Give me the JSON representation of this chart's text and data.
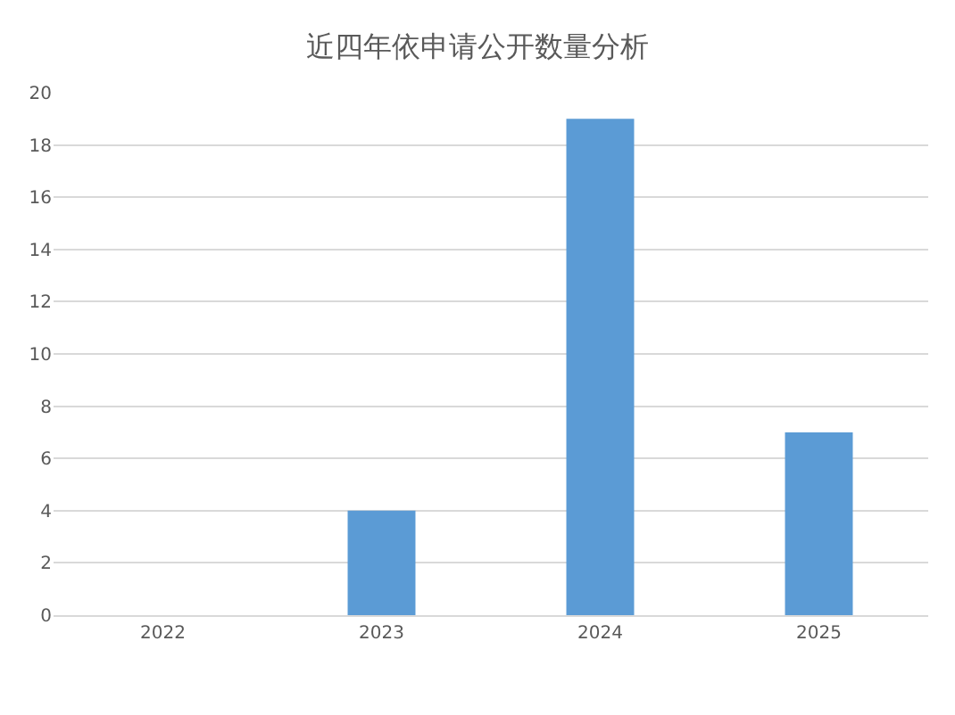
{
  "chart_data": {
    "type": "bar",
    "title": "近四年依申请公开数量分析",
    "categories": [
      "2022",
      "2023",
      "2024",
      "2025"
    ],
    "series": [
      {
        "color": "#5b9bd5",
        "values": [
          0,
          4,
          19,
          7
        ]
      }
    ],
    "ylim": [
      0,
      20
    ],
    "yticks": [
      0,
      2,
      4,
      6,
      8,
      10,
      12,
      14,
      16,
      18,
      20
    ],
    "grid": "y"
  }
}
